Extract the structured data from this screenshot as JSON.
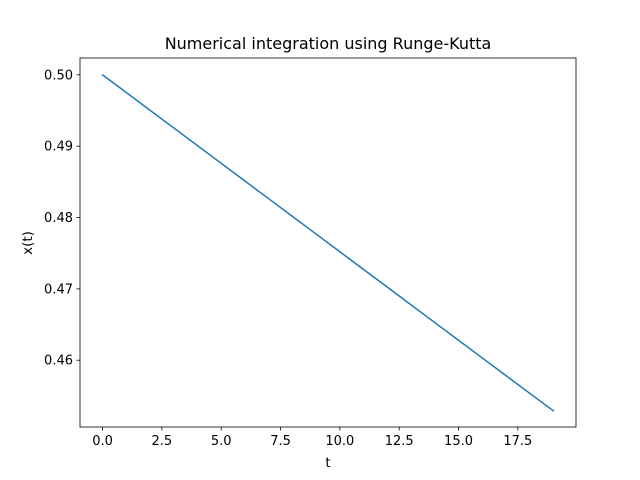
{
  "chart_data": {
    "type": "line",
    "title": "Numerical integration using Runge-Kutta",
    "xlabel": "t",
    "ylabel": "x(t)",
    "xlim": [
      -0.95,
      19.95
    ],
    "ylim": [
      0.45064,
      0.50236
    ],
    "grid": false,
    "x_ticks": [
      0.0,
      2.5,
      5.0,
      7.5,
      10.0,
      12.5,
      15.0,
      17.5
    ],
    "x_tick_labels": [
      "0.0",
      "2.5",
      "5.0",
      "7.5",
      "10.0",
      "12.5",
      "15.0",
      "17.5"
    ],
    "y_ticks": [
      0.46,
      0.47,
      0.48,
      0.49,
      0.5
    ],
    "y_tick_labels": [
      "0.46",
      "0.47",
      "0.48",
      "0.49",
      "0.50"
    ],
    "series": [
      {
        "color": "#1f77b4",
        "x": [
          0,
          1,
          2,
          3,
          4,
          5,
          6,
          7,
          8,
          9,
          10,
          11,
          12,
          13,
          14,
          15,
          16,
          17,
          18,
          19
        ],
        "y": [
          0.5,
          0.49752,
          0.49504,
          0.49256,
          0.49008,
          0.4876,
          0.48512,
          0.48264,
          0.48016,
          0.47768,
          0.4752,
          0.47272,
          0.47024,
          0.46776,
          0.46528,
          0.4628,
          0.46032,
          0.45784,
          0.45536,
          0.4529
        ]
      }
    ]
  }
}
